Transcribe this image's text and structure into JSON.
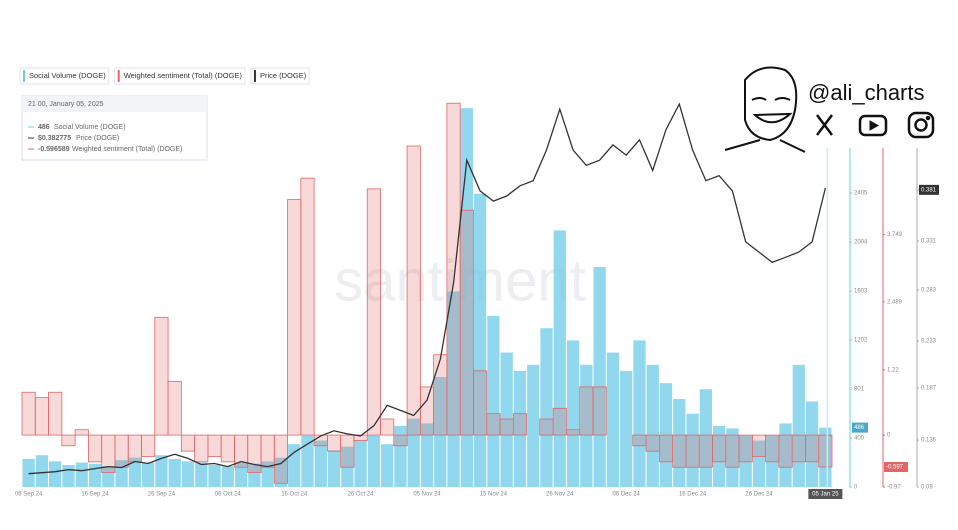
{
  "chart_data": {
    "type": "combo",
    "watermark": "santiment",
    "branding": {
      "handle": "@ali_charts"
    },
    "tooltip": {
      "title": "21 00, January 05, 2025",
      "rows": [
        {
          "value": "486",
          "name": "Social Volume (DOGE)"
        },
        {
          "value": "$0.382775",
          "name": "Price (DOGE)"
        },
        {
          "value": "-0.596589",
          "name": "Weighted sentiment (Total) (DOGE)"
        }
      ]
    },
    "categories": [
      "06 Sep 24",
      null,
      null,
      null,
      null,
      "16 Sep 24",
      null,
      null,
      null,
      null,
      "26 Sep 24",
      null,
      null,
      null,
      null,
      "06 Oct 24",
      null,
      null,
      null,
      null,
      "16 Oct 24",
      null,
      null,
      null,
      null,
      "26 Oct 24",
      null,
      null,
      null,
      null,
      "05 Nov 24",
      null,
      null,
      null,
      null,
      "15 Nov 24",
      null,
      null,
      null,
      null,
      "26 Nov 24",
      null,
      null,
      null,
      null,
      "06 Dec 24",
      null,
      null,
      null,
      null,
      "16 Dec 24",
      null,
      null,
      null,
      null,
      "26 Dec 24",
      null,
      null,
      null,
      null,
      "05 Jan 25"
    ],
    "ylim": [
      0,
      3167
    ],
    "yticks": [
      0,
      400,
      801,
      1202,
      1603,
      2004,
      2405
    ],
    "y2lim": [
      -0.97,
      6.26
    ],
    "y2ticks": [
      -0.97,
      0,
      1.22,
      2.489,
      3.749
    ],
    "y3lim": [
      0.09,
      0.469
    ],
    "y3ticks": [
      0.09,
      0.136,
      0.187,
      0.233,
      0.283,
      0.331,
      0.381
    ],
    "series": [
      {
        "name": "Social Volume (DOGE)",
        "type": "bar",
        "color": "#6ccbe8",
        "values": [
          230,
          260,
          210,
          180,
          200,
          190,
          170,
          220,
          240,
          200,
          260,
          230,
          210,
          200,
          180,
          170,
          200,
          190,
          210,
          240,
          350,
          420,
          380,
          300,
          330,
          380,
          420,
          350,
          500,
          560,
          520,
          900,
          1600,
          3100,
          2400,
          1400,
          1100,
          950,
          1000,
          1300,
          2100,
          1200,
          1000,
          1800,
          1100,
          950,
          1200,
          1000,
          850,
          720,
          600,
          800,
          500,
          480,
          420,
          380,
          420,
          520,
          1000,
          700,
          486
        ]
      },
      {
        "name": "Weighted sentiment (Total) (DOGE)",
        "type": "area",
        "axis": "y2",
        "color": "#e06666",
        "values": [
          0.8,
          0.7,
          0.8,
          -0.2,
          0.1,
          -0.5,
          -0.7,
          -0.6,
          -0.5,
          -0.4,
          2.2,
          1.0,
          -0.3,
          -0.5,
          -0.4,
          -0.5,
          -0.6,
          -0.7,
          -0.6,
          -0.9,
          4.4,
          4.8,
          -0.2,
          -0.3,
          -0.6,
          -0.1,
          4.6,
          0.3,
          -0.2,
          5.4,
          0.9,
          1.5,
          6.2,
          4.2,
          1.2,
          0.4,
          0.3,
          0.4,
          0.0,
          0.3,
          0.5,
          0.1,
          0.9,
          0.9,
          0.0,
          0.0,
          -0.2,
          -0.3,
          -0.5,
          -0.6,
          -0.6,
          -0.6,
          -0.5,
          -0.6,
          -0.5,
          -0.4,
          -0.5,
          -0.6,
          -0.5,
          -0.5,
          -0.596589
        ],
        "value_labels": [
          null,
          null,
          null,
          null,
          null,
          null,
          null,
          null,
          null,
          null,
          null,
          null,
          null,
          null,
          null,
          null,
          null,
          null,
          null,
          null,
          null,
          null,
          null,
          null,
          null,
          null,
          null,
          null,
          null,
          null,
          null,
          null,
          null,
          null,
          null,
          null,
          null,
          null,
          null,
          null,
          null,
          null,
          null,
          null,
          null,
          null,
          null,
          null,
          null,
          null,
          null,
          null,
          null,
          null,
          null,
          null,
          null,
          null,
          null,
          null,
          "-0.597"
        ]
      },
      {
        "name": "Price (DOGE)",
        "type": "line",
        "axis": "y3",
        "color": "#333333",
        "values": [
          0.103,
          0.104,
          0.105,
          0.107,
          0.106,
          0.108,
          0.11,
          0.109,
          0.115,
          0.113,
          0.118,
          0.122,
          0.118,
          0.112,
          0.113,
          0.11,
          0.115,
          0.112,
          0.11,
          0.113,
          0.124,
          0.132,
          0.14,
          0.145,
          0.142,
          0.14,
          0.15,
          0.17,
          0.165,
          0.16,
          0.175,
          0.215,
          0.29,
          0.41,
          0.38,
          0.37,
          0.375,
          0.385,
          0.39,
          0.42,
          0.46,
          0.42,
          0.405,
          0.41,
          0.425,
          0.415,
          0.43,
          0.4,
          0.44,
          0.465,
          0.42,
          0.39,
          0.395,
          0.38,
          0.33,
          0.32,
          0.31,
          0.315,
          0.32,
          0.33,
          0.382775
        ]
      }
    ]
  }
}
